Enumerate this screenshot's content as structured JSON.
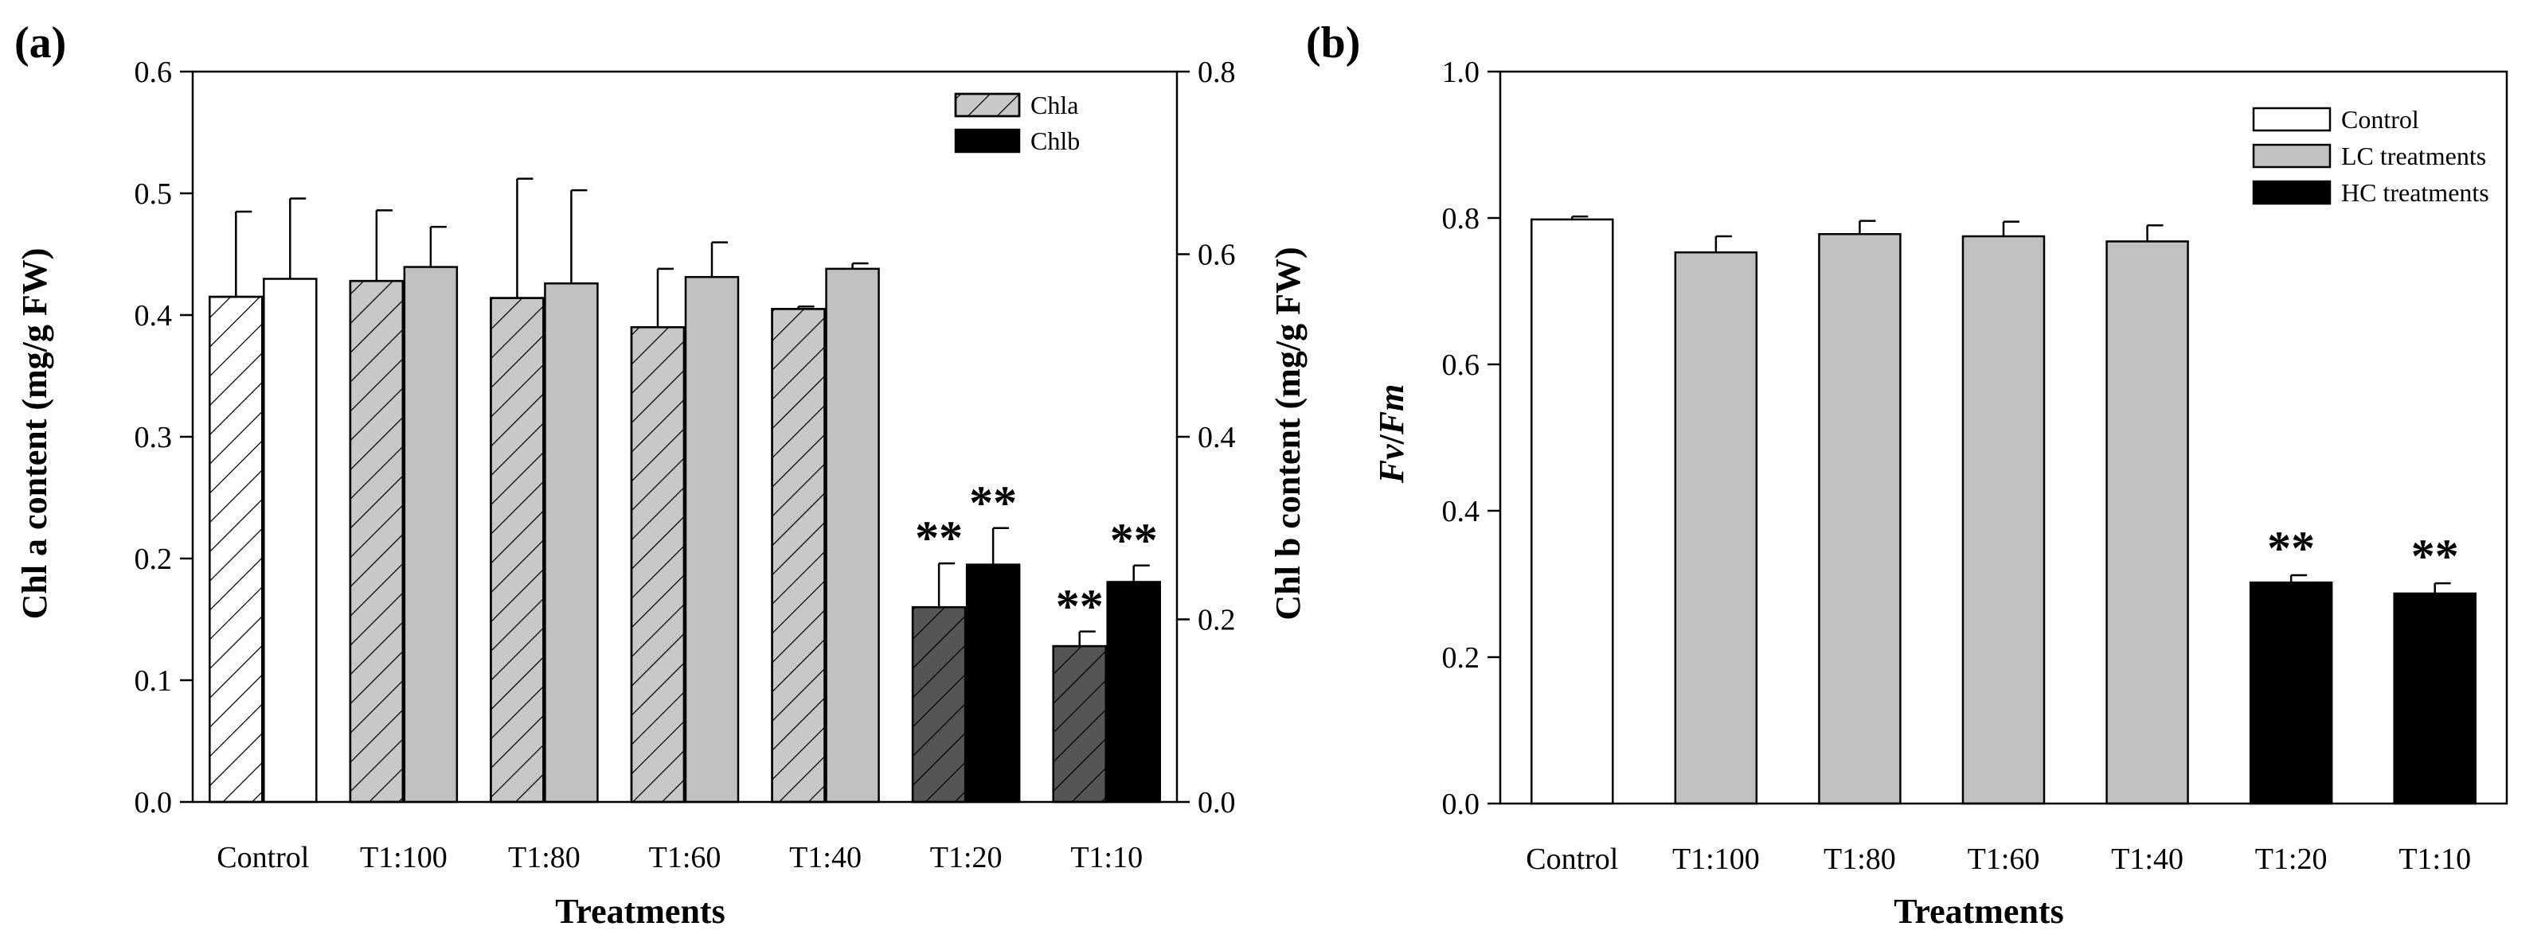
{
  "chart_data": [
    {
      "panel_label": "(a)",
      "type": "bar",
      "categories": [
        "Control",
        "T1:100",
        "T1:80",
        "T1:60",
        "T1:40",
        "T1:20",
        "T1:10"
      ],
      "xlabel": "Treatments",
      "ylabel": "Chl a content (mg/g FW)",
      "y2label": "Chl b content (mg/g FW)",
      "ylim": [
        0,
        0.6
      ],
      "y2lim": [
        0,
        0.8
      ],
      "yticks": [
        "0.0",
        "0.1",
        "0.2",
        "0.3",
        "0.4",
        "0.5",
        "0.6"
      ],
      "y2ticks": [
        "0.0",
        "0.2",
        "0.4",
        "0.6",
        "0.8"
      ],
      "legend_position": "top-right",
      "series": [
        {
          "name": "Chla",
          "axis": "left",
          "values": [
            0.415,
            0.428,
            0.414,
            0.39,
            0.405,
            0.16,
            0.128
          ],
          "errors": [
            0.07,
            0.058,
            0.098,
            0.048,
            0.002,
            0.036,
            0.012
          ],
          "colors": [
            "#ffffff",
            "#c8c8c8",
            "#c8c8c8",
            "#c8c8c8",
            "#c8c8c8",
            "#555555",
            "#555555"
          ],
          "hatch": true,
          "significance": [
            "",
            "",
            "",
            "",
            "",
            "**",
            "**"
          ]
        },
        {
          "name": "Chlb",
          "axis": "right",
          "values": [
            0.573,
            0.586,
            0.568,
            0.575,
            0.584,
            0.26,
            0.241
          ],
          "errors": [
            0.088,
            0.044,
            0.102,
            0.038,
            0.006,
            0.04,
            0.018
          ],
          "colors": [
            "#ffffff",
            "#c0c0c0",
            "#c0c0c0",
            "#c0c0c0",
            "#c0c0c0",
            "#000000",
            "#000000"
          ],
          "hatch": false,
          "significance": [
            "",
            "",
            "",
            "",
            "",
            "**",
            "**"
          ]
        }
      ],
      "legend_entries": [
        {
          "label": "Chla",
          "color": "#c8c8c8",
          "hatch": true
        },
        {
          "label": "Chlb",
          "color": "#000000",
          "hatch": false
        }
      ]
    },
    {
      "panel_label": "(b)",
      "type": "bar",
      "categories": [
        "Control",
        "T1:100",
        "T1:80",
        "T1:60",
        "T1:40",
        "T1:20",
        "T1:10"
      ],
      "xlabel": "Treatments",
      "ylabel_parts": [
        "Fv",
        "/",
        "Fm"
      ],
      "ylim": [
        0,
        1.0
      ],
      "yticks": [
        "0.0",
        "0.2",
        "0.4",
        "0.6",
        "0.8",
        "1.0"
      ],
      "legend_position": "top-right",
      "values": [
        0.798,
        0.753,
        0.778,
        0.775,
        0.768,
        0.302,
        0.287
      ],
      "errors": [
        0.004,
        0.022,
        0.018,
        0.02,
        0.022,
        0.01,
        0.014
      ],
      "colors": [
        "#ffffff",
        "#c0c0c0",
        "#c0c0c0",
        "#c0c0c0",
        "#c0c0c0",
        "#000000",
        "#000000"
      ],
      "significance": [
        "",
        "",
        "",
        "",
        "",
        "**",
        "**"
      ],
      "legend_entries": [
        {
          "label": "Control",
          "color": "#ffffff"
        },
        {
          "label": "LC treatments",
          "color": "#c0c0c0"
        },
        {
          "label": "HC treatments",
          "color": "#000000"
        }
      ]
    }
  ]
}
